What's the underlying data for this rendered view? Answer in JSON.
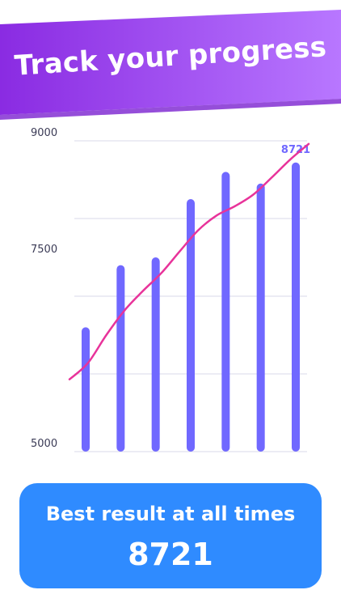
{
  "banner": {
    "title": "Track your progress"
  },
  "colors": {
    "banner_start": "#8a2be2",
    "banner_end": "#b877ff",
    "bar": "#7068ff",
    "line": "#e8339a",
    "grid": "#d8d8ea",
    "card": "#2f8bff"
  },
  "chart_data": {
    "type": "bar",
    "ylim": [
      5000,
      9000
    ],
    "y_ticks": [
      "9000",
      "7500",
      "5000"
    ],
    "values": [
      6600,
      7400,
      7500,
      8250,
      8600,
      8450,
      8721
    ],
    "trend_values": [
      5930,
      6140,
      6500,
      6820,
      7070,
      7300,
      7580,
      7850,
      8040,
      8160,
      8310,
      8530,
      8760,
      8960
    ],
    "value_label": "8721",
    "grid": true
  },
  "best": {
    "label": "Best result at all times",
    "value": "8721"
  }
}
